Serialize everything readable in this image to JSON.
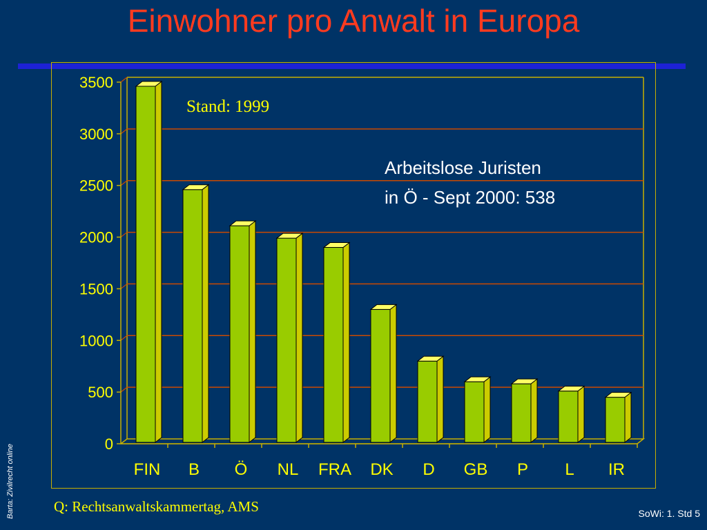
{
  "slide": {
    "title": "Einwohner pro Anwalt in Europa",
    "source": "Q: Rechtsanwaltskammertag, AMS",
    "side_note": "Barta: Zivilrecht online",
    "slide_number": "SoWi: 1. Std 5"
  },
  "colors": {
    "background": "#003366",
    "title": "#ff3b1f",
    "rule": "#1d22d6",
    "frame": "#c8b000",
    "gridline": "#cc4a00",
    "bar_front": "#99cc00",
    "bar_side": "#cccc00",
    "bar_top": "#ffff66",
    "bar_edge": "#000000",
    "axis_text": "#ffff00",
    "stand_text": "#ffff00",
    "annotation_text": "#ffffff"
  },
  "chart_data": {
    "type": "bar",
    "style": "3d-column",
    "categories": [
      "FIN",
      "B",
      "Ö",
      "NL",
      "FRA",
      "DK",
      "D",
      "GB",
      "P",
      "L",
      "IR"
    ],
    "values": [
      3460,
      2460,
      2110,
      1990,
      1900,
      1300,
      800,
      600,
      580,
      510,
      450
    ],
    "title": "",
    "xlabel": "",
    "ylabel": "",
    "ylim": [
      0,
      3500
    ],
    "yticks": [
      0,
      500,
      1000,
      1500,
      2000,
      2500,
      3000,
      3500
    ],
    "grid": true,
    "legend": "none",
    "annotations": {
      "stand": "Stand: 1999",
      "note_line1": "Arbeitslose Juristen",
      "note_line2": "in Ö - Sept 2000: 538"
    }
  }
}
